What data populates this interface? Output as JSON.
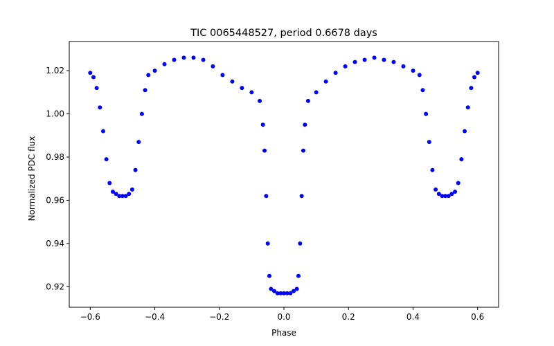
{
  "chart_data": {
    "type": "scatter",
    "title": "TIC 0065448527, period 0.6678 days",
    "xlabel": "Phase",
    "ylabel": "Normalized PDC flux",
    "xlim": [
      -0.665,
      0.665
    ],
    "ylim": [
      0.9105,
      1.0335
    ],
    "xticks": [
      -0.6,
      -0.4,
      -0.2,
      0.0,
      0.2,
      0.4,
      0.6
    ],
    "xtick_labels": [
      "−0.6",
      "−0.4",
      "−0.2",
      "0.0",
      "0.2",
      "0.4",
      "0.6"
    ],
    "yticks": [
      0.92,
      0.94,
      0.96,
      0.98,
      1.0,
      1.02
    ],
    "ytick_labels": [
      "0.92",
      "0.94",
      "0.96",
      "0.98",
      "1.00",
      "1.02"
    ],
    "grid": false,
    "marker_color": "#0000ff",
    "series": [
      {
        "x": [
          -0.6,
          -0.59,
          -0.58,
          -0.57,
          -0.56,
          -0.55,
          -0.54,
          -0.53,
          -0.52,
          -0.51,
          -0.5,
          -0.49,
          -0.48,
          -0.47,
          -0.46,
          -0.45,
          -0.44,
          -0.43,
          -0.42,
          -0.4,
          -0.37,
          -0.34,
          -0.31,
          -0.28,
          -0.25,
          -0.22,
          -0.19,
          -0.16,
          -0.13,
          -0.1,
          -0.075,
          -0.065,
          -0.06,
          -0.055,
          -0.05,
          -0.045,
          -0.04,
          -0.03,
          -0.02,
          -0.01,
          0.0,
          0.01,
          0.02,
          0.03,
          0.04,
          0.045,
          0.05,
          0.055,
          0.06,
          0.065,
          0.075,
          0.1,
          0.13,
          0.16,
          0.19,
          0.22,
          0.25,
          0.28,
          0.31,
          0.34,
          0.37,
          0.4,
          0.42,
          0.43,
          0.44,
          0.45,
          0.46,
          0.47,
          0.48,
          0.49,
          0.5,
          0.51,
          0.52,
          0.53,
          0.54,
          0.55,
          0.56,
          0.57,
          0.58,
          0.59,
          0.6
        ],
        "y": [
          1.019,
          1.017,
          1.012,
          1.003,
          0.992,
          0.979,
          0.968,
          0.964,
          0.963,
          0.962,
          0.962,
          0.962,
          0.963,
          0.965,
          0.974,
          0.987,
          1.0,
          1.011,
          1.018,
          1.02,
          1.023,
          1.025,
          1.026,
          1.026,
          1.025,
          1.022,
          1.018,
          1.015,
          1.012,
          1.01,
          1.006,
          0.995,
          0.983,
          0.962,
          0.94,
          0.925,
          0.919,
          0.918,
          0.917,
          0.917,
          0.917,
          0.917,
          0.917,
          0.918,
          0.919,
          0.925,
          0.94,
          0.962,
          0.983,
          0.995,
          1.006,
          1.01,
          1.015,
          1.019,
          1.022,
          1.024,
          1.025,
          1.026,
          1.025,
          1.024,
          1.022,
          1.02,
          1.018,
          1.011,
          1.0,
          0.987,
          0.974,
          0.965,
          0.963,
          0.962,
          0.962,
          0.962,
          0.963,
          0.964,
          0.968,
          0.979,
          0.992,
          1.003,
          1.012,
          1.017,
          1.019
        ]
      }
    ]
  }
}
